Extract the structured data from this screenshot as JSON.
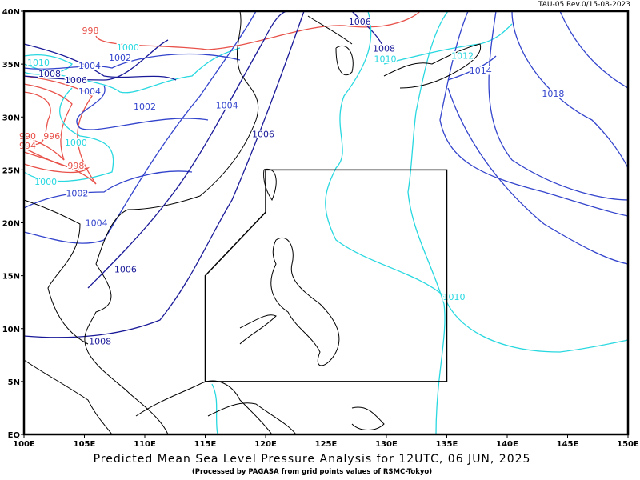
{
  "header": {
    "revision": "TAU-05 Rev.0/15-08-2023"
  },
  "caption": {
    "title": "Predicted Mean Sea Level Pressure Analysis for 12UTC, 06 JUN, 2025",
    "subtitle": "(Processed by PAGASA from grid points values of RSMC-Tokyo)"
  },
  "map": {
    "lon_range": [
      100,
      150
    ],
    "lat_range": [
      0,
      40
    ],
    "lon_labels": [
      "100E",
      "105E",
      "110E",
      "115E",
      "120E",
      "125E",
      "130E",
      "135E",
      "140E",
      "145E",
      "150E"
    ],
    "lat_labels": [
      "EQ",
      "5N",
      "10N",
      "15N",
      "20N",
      "25N",
      "30N",
      "35N",
      "40N"
    ],
    "colors": {
      "low": "#e8524a",
      "mid": "#28d8e0",
      "blue": "#3344cc",
      "navy": "#1a1a99",
      "coast": "#000000"
    },
    "contour_labels": [
      {
        "text": "998",
        "color": "low"
      },
      {
        "text": "1000",
        "color": "mid"
      },
      {
        "text": "1002",
        "color": "blue"
      },
      {
        "text": "1004",
        "color": "blue"
      },
      {
        "text": "1010",
        "color": "mid"
      },
      {
        "text": "1008",
        "color": "navy"
      },
      {
        "text": "1006",
        "color": "navy"
      },
      {
        "text": "1004",
        "color": "blue"
      },
      {
        "text": "1002",
        "color": "blue"
      },
      {
        "text": "990",
        "color": "low"
      },
      {
        "text": "996",
        "color": "low"
      },
      {
        "text": "994",
        "color": "low"
      },
      {
        "text": "1000",
        "color": "mid"
      },
      {
        "text": "998",
        "color": "low"
      },
      {
        "text": "1000",
        "color": "mid"
      },
      {
        "text": "1002",
        "color": "blue"
      },
      {
        "text": "1004",
        "color": "blue"
      },
      {
        "text": "1006",
        "color": "navy"
      },
      {
        "text": "1008",
        "color": "navy"
      },
      {
        "text": "1004",
        "color": "blue"
      },
      {
        "text": "1006",
        "color": "navy"
      },
      {
        "text": "1006",
        "color": "navy"
      },
      {
        "text": "1008",
        "color": "navy"
      },
      {
        "text": "1010",
        "color": "mid"
      },
      {
        "text": "1012",
        "color": "mid"
      },
      {
        "text": "1014",
        "color": "blue"
      },
      {
        "text": "1018",
        "color": "blue"
      },
      {
        "text": "1010",
        "color": "mid"
      }
    ],
    "par_box": {
      "corners_lonlat": [
        [
          120,
          25
        ],
        [
          135,
          25
        ],
        [
          135,
          5
        ],
        [
          115,
          5
        ],
        [
          115,
          15
        ],
        [
          120,
          21
        ],
        [
          120,
          25
        ]
      ]
    }
  }
}
